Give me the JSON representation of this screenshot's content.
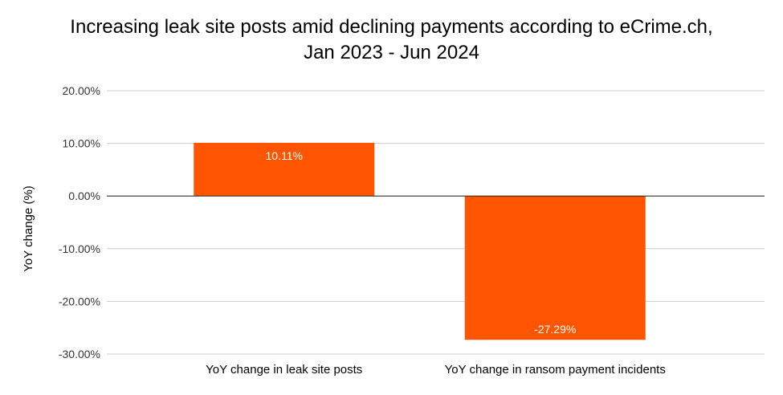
{
  "chart_data": {
    "type": "bar",
    "title_line1": "Increasing leak site posts amid declining payments according to eCrime.ch,",
    "title_line2": "Jan 2023 - Jun 2024",
    "xlabel": "",
    "ylabel": "YoY change (%)",
    "ylim": [
      -30,
      20
    ],
    "yticks": [
      20,
      10,
      0,
      -10,
      -20,
      -30
    ],
    "ytick_labels": [
      "20.00%",
      "10.00%",
      "0.00%",
      "-10.00%",
      "-20.00%",
      "-30.00%"
    ],
    "categories": [
      "YoY change in leak site posts",
      "YoY change in ransom payment incidents"
    ],
    "values": [
      10.11,
      -27.29
    ],
    "data_labels": [
      "10.11%",
      "-27.29%"
    ],
    "grid": true,
    "bar_color": "#ff5500",
    "grid_color": "#cccccc",
    "zero_line_color": "#333333"
  }
}
